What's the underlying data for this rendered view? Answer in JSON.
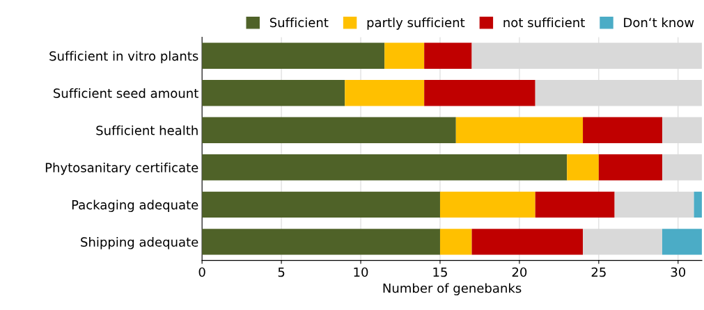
{
  "chart_data": {
    "type": "bar",
    "orientation": "horizontal",
    "stacked": true,
    "categories": [
      "Sufficient in vitro plants",
      "Sufficient seed amount",
      "Sufficient health",
      "Phytosanitary certificate",
      "Packaging adequate",
      "Shipping adequate"
    ],
    "series": [
      {
        "name": "Sufficient",
        "color": "#4f6228",
        "values": [
          11.5,
          9,
          16,
          23,
          15,
          15
        ]
      },
      {
        "name": "partly sufficient",
        "color": "#ffc000",
        "values": [
          2.5,
          5,
          8,
          2,
          6,
          2
        ]
      },
      {
        "name": "not sufficient",
        "color": "#c00000",
        "values": [
          3,
          7,
          5,
          4,
          5,
          7
        ]
      },
      {
        "color": "#d9d9d9",
        "values": [
          14.5,
          10.5,
          2.5,
          2.5,
          5,
          5
        ]
      },
      {
        "name": "Don‘t know",
        "color": "#4bacc6",
        "values": [
          0,
          0,
          0,
          0,
          0.5,
          2.5
        ]
      }
    ],
    "xlim": [
      0,
      31.5
    ],
    "xticks": [
      0,
      5,
      10,
      15,
      20,
      25,
      30
    ],
    "xlabel": "Number of genebanks",
    "grid": "x",
    "legend": "top"
  }
}
